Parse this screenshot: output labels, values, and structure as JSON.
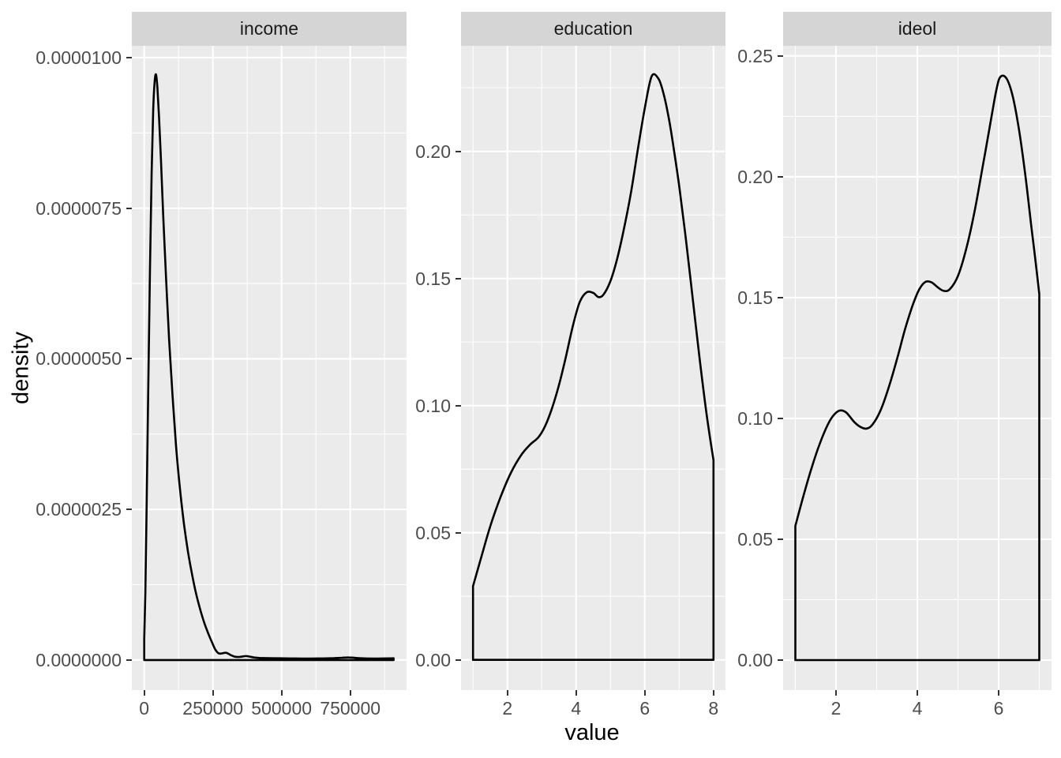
{
  "figure": {
    "background": "#FFFFFF",
    "panel_background": "#EBEBEB",
    "strip_background": "#D5D5D5",
    "grid_color": "#FFFFFF",
    "curve_color": "#000000",
    "tick_mark_color": "#333333",
    "tick_label_color": "#4D4D4D",
    "strip_text_color": "#1A1A1A",
    "axis_title_color": "#000000"
  },
  "chart_data": {
    "type": "area",
    "subtype": "faceted-density",
    "title": "",
    "xlabel": "value",
    "ylabel": "density",
    "legend": "none",
    "grid": "on",
    "panels": [
      {
        "title": "income",
        "xlim": [
          -45000,
          955000
        ],
        "ylim": [
          -5e-07,
          1.0196e-05
        ],
        "x_ticks": {
          "values": [
            0,
            250000,
            500000,
            750000
          ],
          "labels": [
            "0",
            "250000",
            "500000",
            "750000"
          ]
        },
        "y_ticks": {
          "values": [
            0,
            2.5e-06,
            5e-06,
            7.5e-06,
            1e-05
          ],
          "labels": [
            "0.0000000",
            "0.0000025",
            "0.0000050",
            "0.0000075",
            "0.0000100"
          ]
        },
        "x_minor": [
          125000,
          375000,
          625000,
          875000
        ],
        "y_minor": [
          1.25e-06,
          3.75e-06,
          6.25e-06,
          8.75e-06
        ],
        "peak": {
          "x": 43000,
          "y": 9.72e-06
        },
        "curve": [
          [
            0,
            3.5e-07
          ],
          [
            4000,
            1.1e-06
          ],
          [
            9000,
            2.6e-06
          ],
          [
            15000,
            4.6e-06
          ],
          [
            21000,
            6.5e-06
          ],
          [
            27000,
            8.1e-06
          ],
          [
            33000,
            9.15e-06
          ],
          [
            38000,
            9.6e-06
          ],
          [
            43000,
            9.72e-06
          ],
          [
            48000,
            9.5e-06
          ],
          [
            54000,
            9e-06
          ],
          [
            61000,
            8.3e-06
          ],
          [
            70000,
            7.3e-06
          ],
          [
            80000,
            6.3e-06
          ],
          [
            91000,
            5.3e-06
          ],
          [
            103000,
            4.4e-06
          ],
          [
            116000,
            3.55e-06
          ],
          [
            130000,
            2.85e-06
          ],
          [
            145000,
            2.25e-06
          ],
          [
            160000,
            1.78e-06
          ],
          [
            175000,
            1.4e-06
          ],
          [
            190000,
            1.08e-06
          ],
          [
            205000,
            8.2e-07
          ],
          [
            220000,
            6e-07
          ],
          [
            235000,
            4.2e-07
          ],
          [
            248000,
            2.8e-07
          ],
          [
            258000,
            1.8e-07
          ],
          [
            268000,
            1.2e-07
          ],
          [
            278000,
            1.05e-07
          ],
          [
            288000,
            1.15e-07
          ],
          [
            298000,
            1.2e-07
          ],
          [
            308000,
            1e-07
          ],
          [
            318000,
            7.5e-08
          ],
          [
            330000,
            5.5e-08
          ],
          [
            345000,
            5e-08
          ],
          [
            360000,
            6e-08
          ],
          [
            372000,
            6.5e-08
          ],
          [
            385000,
            5.5e-08
          ],
          [
            400000,
            4.2e-08
          ],
          [
            420000,
            3.4e-08
          ],
          [
            450000,
            3e-08
          ],
          [
            490000,
            2.8e-08
          ],
          [
            530000,
            2.6e-08
          ],
          [
            570000,
            2.4e-08
          ],
          [
            610000,
            2.4e-08
          ],
          [
            650000,
            2.6e-08
          ],
          [
            690000,
            3e-08
          ],
          [
            720000,
            3.8e-08
          ],
          [
            745000,
            4.2e-08
          ],
          [
            765000,
            3.6e-08
          ],
          [
            790000,
            2.8e-08
          ],
          [
            830000,
            2.4e-08
          ],
          [
            870000,
            2.5e-08
          ],
          [
            908000,
            2.8e-08
          ]
        ]
      },
      {
        "title": "education",
        "xlim": [
          0.65,
          8.35
        ],
        "ylim": [
          -0.0119,
          0.2415
        ],
        "x_ticks": {
          "values": [
            2,
            4,
            6,
            8
          ],
          "labels": [
            "2",
            "4",
            "6",
            "8"
          ]
        },
        "y_ticks": {
          "values": [
            0.0,
            0.05,
            0.1,
            0.15,
            0.2
          ],
          "labels": [
            "0.00",
            "0.05",
            "0.10",
            "0.15",
            "0.20"
          ]
        },
        "x_minor": [
          1,
          3,
          5,
          7
        ],
        "y_minor": [
          0.025,
          0.075,
          0.125,
          0.175,
          0.225
        ],
        "peak": {
          "x": 6.2,
          "y": 0.23
        },
        "curve": [
          [
            1.0,
            0.029
          ],
          [
            1.2,
            0.0385
          ],
          [
            1.5,
            0.0525
          ],
          [
            1.8,
            0.064
          ],
          [
            2.1,
            0.0735
          ],
          [
            2.4,
            0.0805
          ],
          [
            2.65,
            0.0845
          ],
          [
            2.9,
            0.0875
          ],
          [
            3.1,
            0.092
          ],
          [
            3.3,
            0.099
          ],
          [
            3.5,
            0.108
          ],
          [
            3.7,
            0.119
          ],
          [
            3.9,
            0.131
          ],
          [
            4.1,
            0.1405
          ],
          [
            4.3,
            0.1445
          ],
          [
            4.5,
            0.1443
          ],
          [
            4.65,
            0.1427
          ],
          [
            4.8,
            0.1437
          ],
          [
            5.0,
            0.149
          ],
          [
            5.2,
            0.158
          ],
          [
            5.4,
            0.17
          ],
          [
            5.6,
            0.184
          ],
          [
            5.8,
            0.201
          ],
          [
            6.0,
            0.217
          ],
          [
            6.2,
            0.2295
          ],
          [
            6.4,
            0.2285
          ],
          [
            6.55,
            0.2225
          ],
          [
            6.7,
            0.213
          ],
          [
            6.85,
            0.2005
          ],
          [
            7.0,
            0.1865
          ],
          [
            7.2,
            0.165
          ],
          [
            7.4,
            0.1415
          ],
          [
            7.6,
            0.118
          ],
          [
            7.8,
            0.0965
          ],
          [
            8.0,
            0.0785
          ]
        ]
      },
      {
        "title": "ideol",
        "xlim": [
          0.7,
          7.3
        ],
        "ylim": [
          -0.0124,
          0.2542
        ],
        "x_ticks": {
          "values": [
            2,
            4,
            6
          ],
          "labels": [
            "2",
            "4",
            "6"
          ]
        },
        "y_ticks": {
          "values": [
            0.0,
            0.05,
            0.1,
            0.15,
            0.2,
            0.25
          ],
          "labels": [
            "0.00",
            "0.05",
            "0.10",
            "0.15",
            "0.20",
            "0.25"
          ]
        },
        "x_minor": [
          1,
          3,
          5,
          7
        ],
        "y_minor": [
          0.025,
          0.075,
          0.125,
          0.175,
          0.225
        ],
        "peak": {
          "x": 6.05,
          "y": 0.2415
        },
        "curve": [
          [
            1.0,
            0.0555
          ],
          [
            1.2,
            0.068
          ],
          [
            1.4,
            0.0795
          ],
          [
            1.6,
            0.0895
          ],
          [
            1.8,
            0.0975
          ],
          [
            1.95,
            0.1015
          ],
          [
            2.1,
            0.1033
          ],
          [
            2.25,
            0.1025
          ],
          [
            2.45,
            0.0985
          ],
          [
            2.6,
            0.0965
          ],
          [
            2.75,
            0.0958
          ],
          [
            2.9,
            0.0975
          ],
          [
            3.1,
            0.1035
          ],
          [
            3.3,
            0.113
          ],
          [
            3.5,
            0.1245
          ],
          [
            3.7,
            0.137
          ],
          [
            3.9,
            0.1475
          ],
          [
            4.05,
            0.1535
          ],
          [
            4.2,
            0.1565
          ],
          [
            4.35,
            0.1563
          ],
          [
            4.5,
            0.1543
          ],
          [
            4.65,
            0.1528
          ],
          [
            4.8,
            0.1535
          ],
          [
            5.0,
            0.159
          ],
          [
            5.2,
            0.17
          ],
          [
            5.4,
            0.185
          ],
          [
            5.6,
            0.2035
          ],
          [
            5.8,
            0.2225
          ],
          [
            5.95,
            0.2365
          ],
          [
            6.05,
            0.2415
          ],
          [
            6.2,
            0.2405
          ],
          [
            6.35,
            0.233
          ],
          [
            6.5,
            0.2195
          ],
          [
            6.65,
            0.2015
          ],
          [
            6.8,
            0.18
          ],
          [
            6.9,
            0.166
          ],
          [
            7.0,
            0.1515
          ]
        ]
      }
    ]
  }
}
